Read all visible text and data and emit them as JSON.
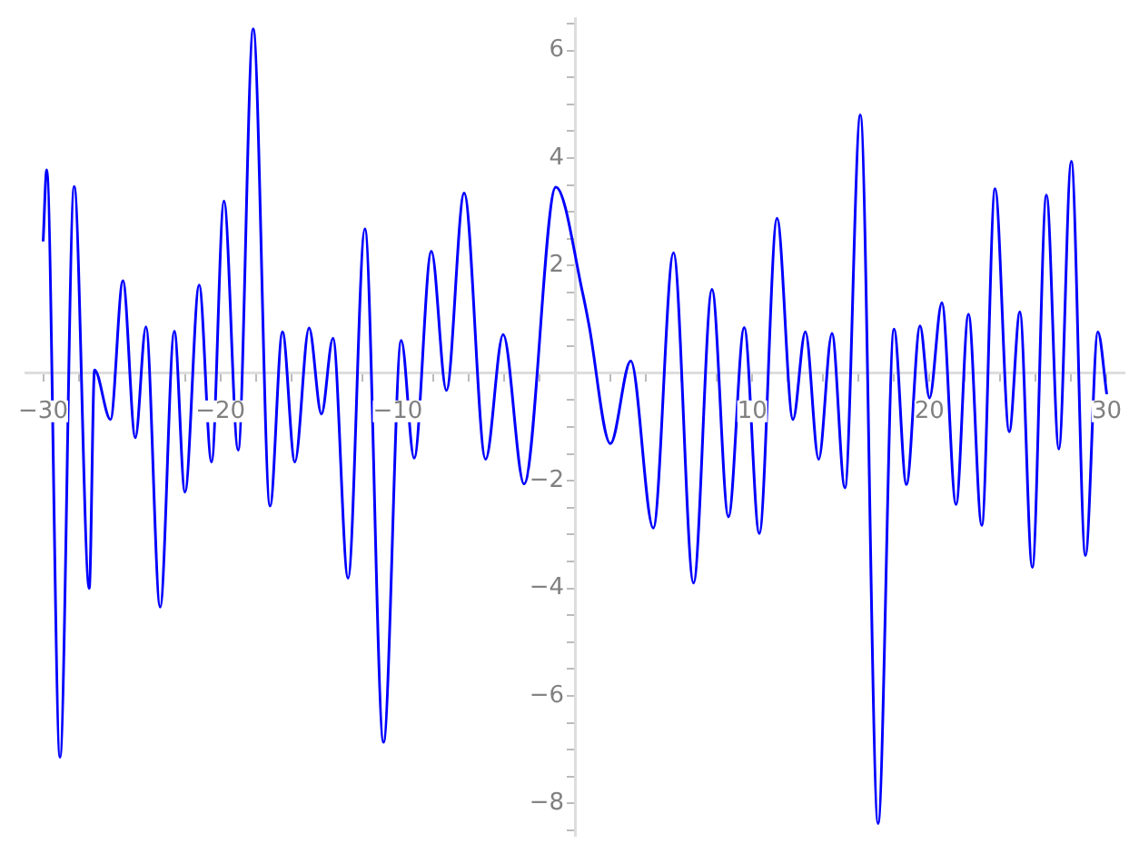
{
  "chart_data": {
    "type": "line",
    "x": [
      -30,
      -29.8,
      -29.05,
      -28.25,
      -27.4,
      -27.1,
      -26.2,
      -25.5,
      -24.8,
      -24.2,
      -23.4,
      -22.6,
      -22.0,
      -21.2,
      -20.5,
      -19.8,
      -19.0,
      -18.15,
      -17.2,
      -16.5,
      -15.8,
      -15.0,
      -14.3,
      -13.65,
      -12.8,
      -11.85,
      -10.8,
      -9.8,
      -9.07,
      -8.1,
      -7.25,
      -6.25,
      -5.04,
      -4.05,
      -2.87,
      -1.08,
      0.46,
      0.8,
      2.0,
      3.15,
      4.42,
      5.56,
      6.69,
      7.73,
      8.66,
      9.55,
      10.4,
      11.4,
      12.3,
      13.0,
      13.75,
      14.5,
      15.23,
      16.1,
      17.1,
      18.0,
      18.7,
      19.47,
      20.0,
      20.7,
      21.5,
      22.2,
      22.95,
      23.7,
      24.5,
      25.1,
      25.8,
      26.6,
      27.3,
      28.0,
      28.8,
      29.5,
      30.0
    ],
    "series": [
      {
        "color": "#0000ff",
        "values": [
          2.45,
          3.78,
          -7.14,
          3.47,
          -4.0,
          0.06,
          -0.86,
          1.72,
          -1.2,
          0.86,
          -4.35,
          0.78,
          -2.21,
          1.64,
          -1.65,
          3.2,
          -1.43,
          6.4,
          -2.47,
          0.77,
          -1.65,
          0.84,
          -0.76,
          0.65,
          -3.81,
          2.68,
          -6.86,
          0.61,
          -1.58,
          2.27,
          -0.32,
          3.35,
          -1.6,
          0.72,
          -2.06,
          3.46,
          1.45,
          0.88,
          -1.31,
          0.23,
          -2.88,
          2.24,
          -3.9,
          1.56,
          -2.67,
          0.85,
          -2.98,
          2.88,
          -0.86,
          0.77,
          -1.6,
          0.74,
          -2.13,
          4.8,
          -8.37,
          0.82,
          -2.07,
          0.88,
          -0.46,
          1.31,
          -2.44,
          1.1,
          -2.83,
          3.43,
          -1.09,
          1.14,
          -3.61,
          3.31,
          -1.41,
          3.94,
          -3.39,
          0.77,
          -0.39
        ]
      }
    ],
    "xlim": [
      -31,
      31
    ],
    "ylim": [
      -8.6,
      6.6
    ],
    "xticks": [
      {
        "value": -30,
        "label": "−30"
      },
      {
        "value": -28,
        "label": null
      },
      {
        "value": -26,
        "label": null
      },
      {
        "value": -24,
        "label": null
      },
      {
        "value": -22,
        "label": null
      },
      {
        "value": -20,
        "label": "−20"
      },
      {
        "value": -18,
        "label": null
      },
      {
        "value": -16,
        "label": null
      },
      {
        "value": -14,
        "label": null
      },
      {
        "value": -12,
        "label": null
      },
      {
        "value": -10,
        "label": "−10"
      },
      {
        "value": -8,
        "label": null
      },
      {
        "value": -6,
        "label": null
      },
      {
        "value": -4,
        "label": null
      },
      {
        "value": -2,
        "label": null
      },
      {
        "value": 2,
        "label": null
      },
      {
        "value": 4,
        "label": null
      },
      {
        "value": 6,
        "label": null
      },
      {
        "value": 8,
        "label": null
      },
      10,
      {
        "value": 12,
        "label": null
      },
      {
        "value": 14,
        "label": null
      },
      {
        "value": 16,
        "label": null
      },
      {
        "value": 18,
        "label": null
      },
      20,
      {
        "value": 22,
        "label": null
      },
      {
        "value": 24,
        "label": null
      },
      {
        "value": 26,
        "label": null
      },
      {
        "value": 28,
        "label": null
      },
      30
    ],
    "yticks": [
      {
        "value": -8.5,
        "label": null
      },
      {
        "value": -8,
        "label": "−8"
      },
      {
        "value": -7.5,
        "label": null
      },
      {
        "value": -7,
        "label": null
      },
      {
        "value": -6.5,
        "label": null
      },
      {
        "value": -6,
        "label": "−6"
      },
      {
        "value": -5.5,
        "label": null
      },
      {
        "value": -5,
        "label": null
      },
      {
        "value": -4.5,
        "label": null
      },
      {
        "value": -4,
        "label": "−4"
      },
      {
        "value": -3.5,
        "label": null
      },
      {
        "value": -3,
        "label": null
      },
      {
        "value": -2.5,
        "label": null
      },
      {
        "value": -2,
        "label": "−2"
      },
      {
        "value": -1.5,
        "label": null
      },
      {
        "value": -1,
        "label": null
      },
      {
        "value": -0.5,
        "label": null
      },
      {
        "value": 0.5,
        "label": null
      },
      {
        "value": 1,
        "label": null
      },
      {
        "value": 1.5,
        "label": null
      },
      2,
      {
        "value": 2.5,
        "label": null
      },
      {
        "value": 3,
        "label": null
      },
      {
        "value": 3.5,
        "label": null
      },
      4,
      {
        "value": 4.5,
        "label": null
      },
      {
        "value": 5,
        "label": null
      },
      {
        "value": 5.5,
        "label": null
      },
      6,
      {
        "value": 6.5,
        "label": null
      }
    ],
    "grid": false,
    "marker": "none",
    "line_style": "solid"
  }
}
